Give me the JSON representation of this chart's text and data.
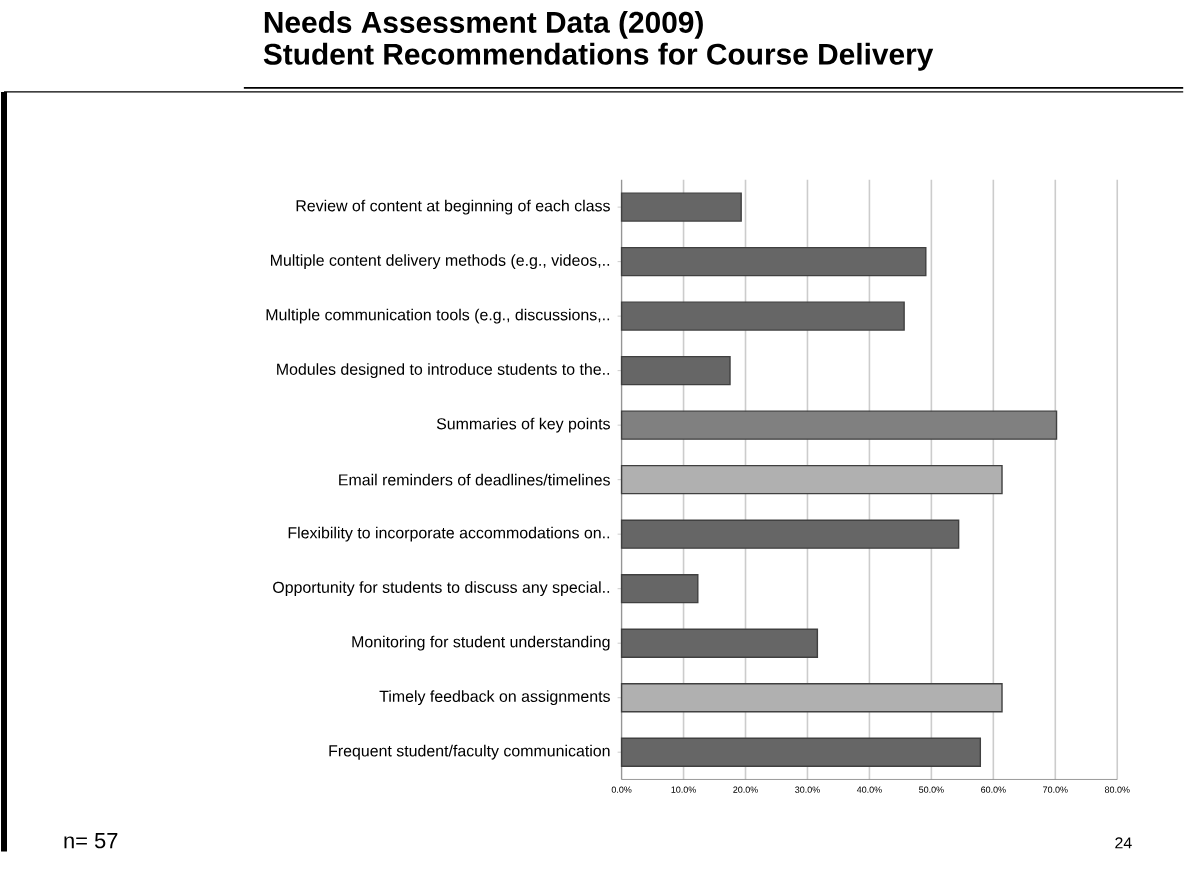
{
  "chart_data": {
    "type": "bar",
    "orientation": "horizontal",
    "title": "Needs Assessment Data  (2009)",
    "subtitle": "Student Recommendations for Course Delivery",
    "categories": [
      "Review of content at beginning of each class",
      "Multiple content delivery methods (e.g., videos,..",
      "Multiple communication tools (e.g., discussions,..",
      "Modules designed to introduce students to the..",
      "Summaries of key points",
      "Email reminders of deadlines/timelines",
      "Flexibility to incorporate accommodations on..",
      "Opportunity for students to discuss any special..",
      "Monitoring for student understanding",
      "Timely feedback on assignments",
      "Frequent student/faculty communication"
    ],
    "values": [
      19.3,
      49.1,
      45.6,
      17.5,
      70.2,
      61.4,
      54.4,
      12.3,
      31.6,
      61.4,
      57.9
    ],
    "colors": [
      "#666666",
      "#666666",
      "#666666",
      "#666666",
      "#808080",
      "#b0b0b0",
      "#666666",
      "#666666",
      "#666666",
      "#b0b0b0",
      "#666666"
    ],
    "xlim": [
      0,
      80
    ],
    "xticks": [
      {
        "value": 0,
        "label": "0.0%"
      },
      {
        "value": 10,
        "label": "10.0%"
      },
      {
        "value": 20,
        "label": "20.0%"
      },
      {
        "value": 30,
        "label": "30.0%"
      },
      {
        "value": 40,
        "label": "40.0%"
      },
      {
        "value": 50,
        "label": "50.0%"
      },
      {
        "value": 60,
        "label": "60.0%"
      },
      {
        "value": 70,
        "label": "70.0%"
      },
      {
        "value": 80,
        "label": "80.0%"
      }
    ],
    "grid": "x",
    "annotations": [
      "n= 57",
      "24"
    ]
  }
}
